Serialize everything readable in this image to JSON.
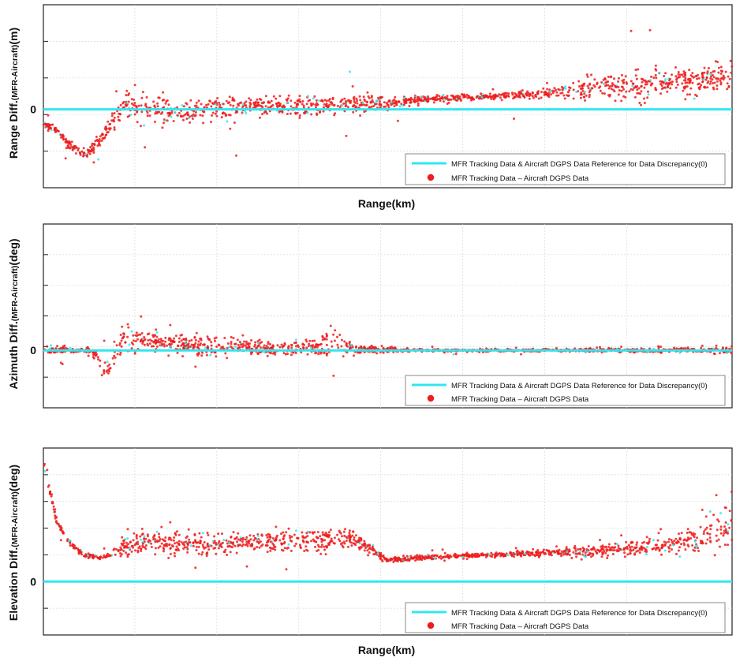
{
  "figure": {
    "colors": {
      "reference": "#33e6ee",
      "data": "#ee1c1c",
      "grid": "#d9d9d9",
      "frame": "#222222"
    }
  },
  "chart_data": [
    {
      "type": "scatter",
      "title": "",
      "xlabel": "Range(km)",
      "ylabel": "Range Diff.",
      "ylabel_sub": "(MFR-Aircraft)",
      "ylabel_unit": "(m)",
      "zero_tick": "0",
      "xlim": [
        0,
        100
      ],
      "ylim": [
        -1.2,
        1.6
      ],
      "grid": true,
      "legend_position": "bottom-right",
      "series": [
        {
          "name": "MFR Tracking Data & Aircraft DGPS Data Reference for Data Discrepancy(0)",
          "kind": "line",
          "y": 0
        },
        {
          "name": "MFR Tracking Data – Aircraft DGPS Data",
          "kind": "scatter",
          "x": [
            0,
            2,
            4,
            6,
            8,
            10,
            12,
            15,
            20,
            25,
            30,
            35,
            40,
            45,
            50,
            55,
            60,
            65,
            70,
            75,
            80,
            85,
            90,
            95,
            99
          ],
          "y": [
            -0.2,
            -0.35,
            -0.55,
            -0.7,
            -0.5,
            -0.2,
            0.05,
            0.0,
            -0.03,
            0.0,
            0.03,
            0.05,
            0.05,
            0.08,
            0.1,
            0.15,
            0.17,
            0.2,
            0.22,
            0.28,
            0.32,
            0.35,
            0.4,
            0.45,
            0.5
          ],
          "spread": [
            0.05,
            0.06,
            0.06,
            0.07,
            0.1,
            0.15,
            0.22,
            0.2,
            0.17,
            0.16,
            0.15,
            0.13,
            0.12,
            0.12,
            0.1,
            0.05,
            0.04,
            0.04,
            0.05,
            0.08,
            0.15,
            0.18,
            0.2,
            0.2,
            0.22
          ]
        }
      ]
    },
    {
      "type": "scatter",
      "title": "",
      "xlabel": "",
      "ylabel": "Azimuth Diff.",
      "ylabel_sub": "(MFR-Aircraft)",
      "ylabel_unit": "(deg)",
      "zero_tick": "0",
      "xlim": [
        0,
        100
      ],
      "ylim": [
        -1.0,
        2.2
      ],
      "grid": true,
      "legend_position": "bottom-right",
      "series": [
        {
          "name": "MFR Tracking Data & Aircraft DGPS Data Reference for Data Discrepancy(0)",
          "kind": "line",
          "y": 0
        },
        {
          "name": "MFR Tracking Data – Aircraft DGPS Data",
          "kind": "scatter",
          "x": [
            0,
            3,
            6,
            8,
            9,
            11,
            15,
            20,
            25,
            30,
            35,
            40,
            42,
            45,
            50,
            55,
            60,
            65,
            70,
            75,
            80,
            85,
            90,
            95,
            99
          ],
          "y": [
            0.0,
            0.0,
            0.0,
            -0.1,
            -0.5,
            0.12,
            0.18,
            0.1,
            0.05,
            0.05,
            0.04,
            0.05,
            0.1,
            0.02,
            0.01,
            0.0,
            0.0,
            0.0,
            0.0,
            0.0,
            0.0,
            0.0,
            0.0,
            0.0,
            0.0
          ],
          "spread": [
            0.05,
            0.05,
            0.05,
            0.08,
            0.2,
            0.18,
            0.16,
            0.16,
            0.15,
            0.14,
            0.12,
            0.12,
            0.3,
            0.07,
            0.04,
            0.02,
            0.02,
            0.02,
            0.02,
            0.02,
            0.03,
            0.03,
            0.03,
            0.04,
            0.06
          ]
        }
      ]
    },
    {
      "type": "scatter",
      "title": "",
      "xlabel": "Range(km)",
      "ylabel": "Elevation Diff.",
      "ylabel_sub": "(MFR-Aircraft)",
      "ylabel_unit": "(deg)",
      "zero_tick": "0",
      "xlim": [
        0,
        100
      ],
      "ylim": [
        -0.2,
        0.5
      ],
      "grid": true,
      "legend_position": "bottom-right",
      "series": [
        {
          "name": "MFR Tracking Data & Aircraft DGPS Data Reference for Data Discrepancy(0)",
          "kind": "line",
          "y": 0
        },
        {
          "name": "MFR Tracking Data – Aircraft DGPS Data",
          "kind": "scatter",
          "x": [
            0,
            1,
            2,
            4,
            6,
            8,
            10,
            12,
            15,
            20,
            25,
            30,
            35,
            40,
            45,
            50,
            55,
            60,
            65,
            70,
            75,
            80,
            85,
            90,
            95,
            99
          ],
          "y": [
            0.44,
            0.34,
            0.22,
            0.14,
            0.1,
            0.09,
            0.1,
            0.13,
            0.15,
            0.14,
            0.14,
            0.15,
            0.15,
            0.15,
            0.16,
            0.08,
            0.09,
            0.095,
            0.1,
            0.105,
            0.11,
            0.115,
            0.125,
            0.135,
            0.15,
            0.22
          ],
          "spread": [
            0.03,
            0.02,
            0.01,
            0.01,
            0.008,
            0.008,
            0.01,
            0.035,
            0.04,
            0.04,
            0.035,
            0.035,
            0.035,
            0.035,
            0.03,
            0.008,
            0.008,
            0.008,
            0.008,
            0.01,
            0.012,
            0.02,
            0.025,
            0.03,
            0.05,
            0.1
          ]
        }
      ]
    }
  ]
}
